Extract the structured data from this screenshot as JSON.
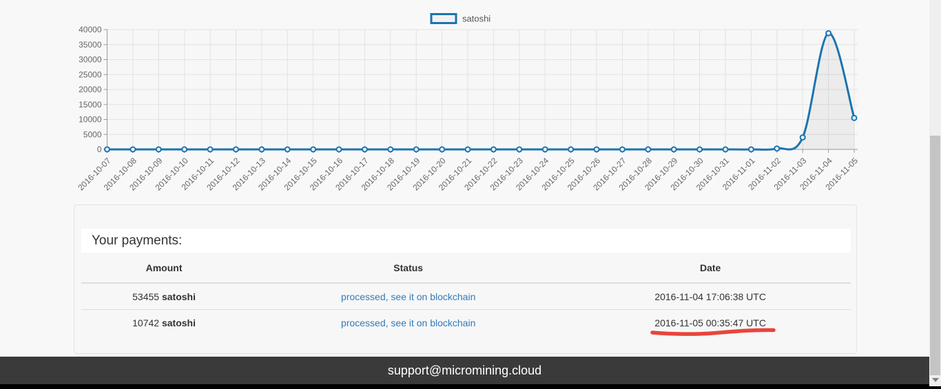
{
  "chart_data": {
    "type": "line",
    "title": "",
    "legend": [
      "satoshi"
    ],
    "legend_position": "top",
    "x": [
      "2016-10-07",
      "2016-10-08",
      "2016-10-09",
      "2016-10-10",
      "2016-10-11",
      "2016-10-12",
      "2016-10-13",
      "2016-10-14",
      "2016-10-15",
      "2016-10-16",
      "2016-10-17",
      "2016-10-18",
      "2016-10-19",
      "2016-10-20",
      "2016-10-21",
      "2016-10-22",
      "2016-10-23",
      "2016-10-24",
      "2016-10-25",
      "2016-10-26",
      "2016-10-27",
      "2016-10-28",
      "2016-10-29",
      "2016-10-30",
      "2016-10-31",
      "2016-11-01",
      "2016-11-02",
      "2016-11-03",
      "2016-11-04",
      "2016-11-05"
    ],
    "series": [
      {
        "name": "satoshi",
        "values": [
          0,
          0,
          0,
          0,
          0,
          0,
          0,
          0,
          0,
          0,
          0,
          0,
          0,
          0,
          0,
          0,
          0,
          0,
          0,
          0,
          0,
          0,
          0,
          0,
          0,
          0,
          300,
          4000,
          38800,
          10500
        ]
      }
    ],
    "ylim": [
      0,
      40000
    ],
    "y_ticks": [
      0,
      5000,
      10000,
      15000,
      20000,
      25000,
      30000,
      35000,
      40000
    ],
    "grid": true,
    "line_color": "#1b74ae",
    "point_fill": "#e8f0f7",
    "area_fill": "rgba(0,0,0,0.045)",
    "grid_color": "#e2e2e4",
    "axis_color": "#9a9a9a",
    "tick_label_color": "#666666",
    "legend_label_color": "#555555"
  },
  "payments": {
    "title": "Your payments:",
    "columns": [
      "Amount",
      "Status",
      "Date"
    ],
    "rows": [
      {
        "amount_value": "53455",
        "amount_unit": "satoshi",
        "status": "processed, see it on blockchain",
        "date": "2016-11-04 17:06:38 UTC",
        "underlined": false
      },
      {
        "amount_value": "10742",
        "amount_unit": "satoshi",
        "status": "processed, see it on blockchain",
        "date": "2016-11-05 00:35:47 UTC",
        "underlined": true
      }
    ]
  },
  "annotation": {
    "color": "#e8453c"
  },
  "footer": {
    "email": "support@micromining.cloud"
  }
}
